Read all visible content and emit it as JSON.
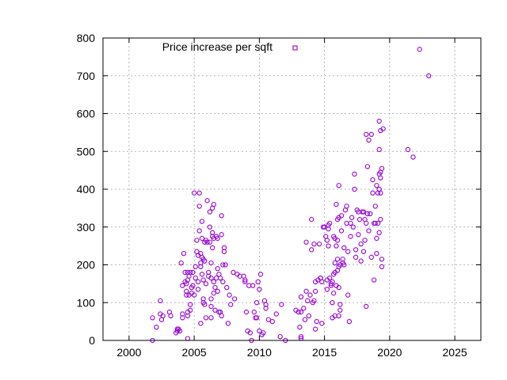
{
  "chart_data": {
    "type": "scatter",
    "title": "",
    "xlabel": "",
    "ylabel": "",
    "xlim": [
      1998,
      2027
    ],
    "ylim": [
      0,
      800
    ],
    "xticks": [
      2000,
      2005,
      2010,
      2015,
      2020,
      2025
    ],
    "yticks": [
      0,
      100,
      200,
      300,
      400,
      500,
      600,
      700,
      800
    ],
    "grid": true,
    "legend_position": "top-left",
    "series": [
      {
        "name": "Price increase per sqft",
        "color": "#9400d3",
        "marker": "circle-open",
        "points": [
          [
            2001.8,
            60
          ],
          [
            2001.8,
            0
          ],
          [
            2002.1,
            35
          ],
          [
            2002.4,
            105
          ],
          [
            2002.4,
            70
          ],
          [
            2002.5,
            55
          ],
          [
            2002.6,
            65
          ],
          [
            2003.1,
            75
          ],
          [
            2003.2,
            65
          ],
          [
            2003.6,
            20
          ],
          [
            2003.7,
            30
          ],
          [
            2003.7,
            25
          ],
          [
            2003.8,
            30
          ],
          [
            2003.9,
            25
          ],
          [
            2004.0,
            205
          ],
          [
            2004.1,
            70
          ],
          [
            2004.1,
            60
          ],
          [
            2004.1,
            145
          ],
          [
            2004.2,
            230
          ],
          [
            2004.3,
            180
          ],
          [
            2004.3,
            155
          ],
          [
            2004.4,
            150
          ],
          [
            2004.4,
            130
          ],
          [
            2004.4,
            120
          ],
          [
            2004.5,
            180
          ],
          [
            2004.5,
            160
          ],
          [
            2004.5,
            75
          ],
          [
            2004.5,
            65
          ],
          [
            2004.5,
            5
          ],
          [
            2004.6,
            170
          ],
          [
            2004.6,
            120
          ],
          [
            2004.7,
            180
          ],
          [
            2004.7,
            95
          ],
          [
            2004.7,
            80
          ],
          [
            2004.8,
            140
          ],
          [
            2004.8,
            125
          ],
          [
            2004.9,
            180
          ],
          [
            2004.9,
            145
          ],
          [
            2005.0,
            120
          ],
          [
            2005.0,
            390
          ],
          [
            2005.1,
            195
          ],
          [
            2005.1,
            165
          ],
          [
            2005.2,
            235
          ],
          [
            2005.2,
            265
          ],
          [
            2005.3,
            225
          ],
          [
            2005.3,
            155
          ],
          [
            2005.3,
            135
          ],
          [
            2005.4,
            390
          ],
          [
            2005.4,
            355
          ],
          [
            2005.4,
            290
          ],
          [
            2005.5,
            230
          ],
          [
            2005.5,
            205
          ],
          [
            2005.5,
            195
          ],
          [
            2005.5,
            45
          ],
          [
            2005.6,
            315
          ],
          [
            2005.6,
            270
          ],
          [
            2005.6,
            220
          ],
          [
            2005.6,
            175
          ],
          [
            2005.7,
            215
          ],
          [
            2005.7,
            160
          ],
          [
            2005.7,
            110
          ],
          [
            2005.7,
            100
          ],
          [
            2005.8,
            260
          ],
          [
            2005.8,
            210
          ],
          [
            2005.8,
            95
          ],
          [
            2005.9,
            265
          ],
          [
            2005.9,
            150
          ],
          [
            2005.9,
            60
          ],
          [
            2006.0,
            370
          ],
          [
            2006.0,
            260
          ],
          [
            2006.1,
            180
          ],
          [
            2006.1,
            170
          ],
          [
            2006.2,
            340
          ],
          [
            2006.2,
            300
          ],
          [
            2006.2,
            260
          ],
          [
            2006.3,
            205
          ],
          [
            2006.3,
            165
          ],
          [
            2006.3,
            110
          ],
          [
            2006.3,
            90
          ],
          [
            2006.3,
            60
          ],
          [
            2006.4,
            350
          ],
          [
            2006.4,
            285
          ],
          [
            2006.4,
            275
          ],
          [
            2006.4,
            245
          ],
          [
            2006.5,
            360
          ],
          [
            2006.5,
            270
          ],
          [
            2006.5,
            155
          ],
          [
            2006.5,
            125
          ],
          [
            2006.6,
            140
          ],
          [
            2006.6,
            80
          ],
          [
            2006.7,
            275
          ],
          [
            2006.7,
            165
          ],
          [
            2006.8,
            270
          ],
          [
            2006.8,
            190
          ],
          [
            2006.8,
            130
          ],
          [
            2006.9,
            175
          ],
          [
            2006.9,
            75
          ],
          [
            2007.0,
            165
          ],
          [
            2007.0,
            75
          ],
          [
            2007.1,
            330
          ],
          [
            2007.1,
            280
          ],
          [
            2007.1,
            65
          ],
          [
            2007.2,
            200
          ],
          [
            2007.2,
            155
          ],
          [
            2007.3,
            245
          ],
          [
            2007.3,
            235
          ],
          [
            2007.4,
            200
          ],
          [
            2007.5,
            140
          ],
          [
            2007.6,
            45
          ],
          [
            2007.7,
            120
          ],
          [
            2007.8,
            95
          ],
          [
            2008.0,
            180
          ],
          [
            2008.1,
            110
          ],
          [
            2008.3,
            175
          ],
          [
            2008.5,
            170
          ],
          [
            2008.8,
            170
          ],
          [
            2008.9,
            160
          ],
          [
            2008.9,
            155
          ],
          [
            2009.0,
            75
          ],
          [
            2009.1,
            25
          ],
          [
            2009.2,
            145
          ],
          [
            2009.3,
            20
          ],
          [
            2009.4,
            0
          ],
          [
            2009.5,
            145
          ],
          [
            2009.6,
            75
          ],
          [
            2009.7,
            60
          ],
          [
            2009.8,
            100
          ],
          [
            2009.8,
            60
          ],
          [
            2009.9,
            155
          ],
          [
            2010.0,
            135
          ],
          [
            2010.0,
            25
          ],
          [
            2010.1,
            175
          ],
          [
            2010.2,
            15
          ],
          [
            2010.3,
            20
          ],
          [
            2010.4,
            105
          ],
          [
            2010.5,
            85
          ],
          [
            2010.5,
            95
          ],
          [
            2010.7,
            55
          ],
          [
            2011.0,
            50
          ],
          [
            2011.3,
            70
          ],
          [
            2011.6,
            10
          ],
          [
            2011.7,
            95
          ],
          [
            2012.0,
            0
          ],
          [
            2012.8,
            80
          ],
          [
            2013.0,
            75
          ],
          [
            2013.1,
            35
          ],
          [
            2013.2,
            10
          ],
          [
            2013.2,
            5
          ],
          [
            2013.2,
            75
          ],
          [
            2013.2,
            115
          ],
          [
            2013.4,
            85
          ],
          [
            2013.5,
            55
          ],
          [
            2013.6,
            260
          ],
          [
            2013.6,
            130
          ],
          [
            2013.7,
            105
          ],
          [
            2013.8,
            65
          ],
          [
            2013.9,
            120
          ],
          [
            2014.0,
            320
          ],
          [
            2014.0,
            240
          ],
          [
            2014.1,
            100
          ],
          [
            2014.2,
            105
          ],
          [
            2014.2,
            255
          ],
          [
            2014.3,
            155
          ],
          [
            2014.3,
            130
          ],
          [
            2014.3,
            30
          ],
          [
            2014.4,
            50
          ],
          [
            2014.5,
            160
          ],
          [
            2014.6,
            255
          ],
          [
            2014.7,
            165
          ],
          [
            2014.7,
            165
          ],
          [
            2014.8,
            155
          ],
          [
            2014.8,
            45
          ],
          [
            2014.9,
            300
          ],
          [
            2015.0,
            300
          ],
          [
            2015.1,
            275
          ],
          [
            2015.2,
            265
          ],
          [
            2015.2,
            160
          ],
          [
            2015.2,
            135
          ],
          [
            2015.3,
            305
          ],
          [
            2015.3,
            295
          ],
          [
            2015.3,
            250
          ],
          [
            2015.4,
            310
          ],
          [
            2015.4,
            165
          ],
          [
            2015.5,
            150
          ],
          [
            2015.5,
            145
          ],
          [
            2015.6,
            155
          ],
          [
            2015.6,
            100
          ],
          [
            2015.6,
            60
          ],
          [
            2015.7,
            275
          ],
          [
            2015.7,
            175
          ],
          [
            2015.7,
            125
          ],
          [
            2015.8,
            270
          ],
          [
            2015.8,
            205
          ],
          [
            2015.8,
            180
          ],
          [
            2015.8,
            65
          ],
          [
            2015.9,
            360
          ],
          [
            2015.9,
            250
          ],
          [
            2015.9,
            145
          ],
          [
            2016.0,
            320
          ],
          [
            2016.0,
            265
          ],
          [
            2016.0,
            215
          ],
          [
            2016.0,
            185
          ],
          [
            2016.1,
            410
          ],
          [
            2016.1,
            325
          ],
          [
            2016.1,
            195
          ],
          [
            2016.1,
            140
          ],
          [
            2016.1,
            65
          ],
          [
            2016.2,
            200
          ],
          [
            2016.2,
            80
          ],
          [
            2016.2,
            95
          ],
          [
            2016.3,
            330
          ],
          [
            2016.3,
            290
          ],
          [
            2016.4,
            215
          ],
          [
            2016.4,
            205
          ],
          [
            2016.5,
            245
          ],
          [
            2016.5,
            200
          ],
          [
            2016.6,
            345
          ],
          [
            2016.7,
            355
          ],
          [
            2016.7,
            310
          ],
          [
            2016.8,
            235
          ],
          [
            2016.8,
            120
          ],
          [
            2016.9,
            50
          ],
          [
            2017.0,
            310
          ],
          [
            2017.0,
            275
          ],
          [
            2017.1,
            325
          ],
          [
            2017.2,
            300
          ],
          [
            2017.3,
            440
          ],
          [
            2017.3,
            400
          ],
          [
            2017.4,
            240
          ],
          [
            2017.4,
            220
          ],
          [
            2017.5,
            345
          ],
          [
            2017.6,
            280
          ],
          [
            2017.6,
            340
          ],
          [
            2017.7,
            320
          ],
          [
            2017.8,
            255
          ],
          [
            2017.8,
            210
          ],
          [
            2017.9,
            340
          ],
          [
            2018.0,
            340
          ],
          [
            2018.0,
            235
          ],
          [
            2018.1,
            320
          ],
          [
            2018.1,
            265
          ],
          [
            2018.2,
            310
          ],
          [
            2018.2,
            545
          ],
          [
            2018.2,
            90
          ],
          [
            2018.3,
            460
          ],
          [
            2018.3,
            335
          ],
          [
            2018.4,
            530
          ],
          [
            2018.4,
            290
          ],
          [
            2018.5,
            335
          ],
          [
            2018.6,
            545
          ],
          [
            2018.6,
            220
          ],
          [
            2018.7,
            425
          ],
          [
            2018.7,
            390
          ],
          [
            2018.8,
            160
          ],
          [
            2018.8,
            310
          ],
          [
            2018.9,
            355
          ],
          [
            2018.9,
            310
          ],
          [
            2019.0,
            270
          ],
          [
            2019.0,
            410
          ],
          [
            2019.0,
            230
          ],
          [
            2019.1,
            390
          ],
          [
            2019.1,
            310
          ],
          [
            2019.2,
            580
          ],
          [
            2019.2,
            505
          ],
          [
            2019.2,
            440
          ],
          [
            2019.2,
            400
          ],
          [
            2019.2,
            285
          ],
          [
            2019.3,
            555
          ],
          [
            2019.3,
            445
          ],
          [
            2019.3,
            430
          ],
          [
            2019.3,
            390
          ],
          [
            2019.3,
            320
          ],
          [
            2019.4,
            455
          ],
          [
            2019.4,
            215
          ],
          [
            2019.4,
            195
          ],
          [
            2019.5,
            560
          ],
          [
            2021.4,
            505
          ],
          [
            2021.8,
            485
          ],
          [
            2022.3,
            770
          ],
          [
            2023.0,
            700
          ]
        ]
      }
    ]
  }
}
